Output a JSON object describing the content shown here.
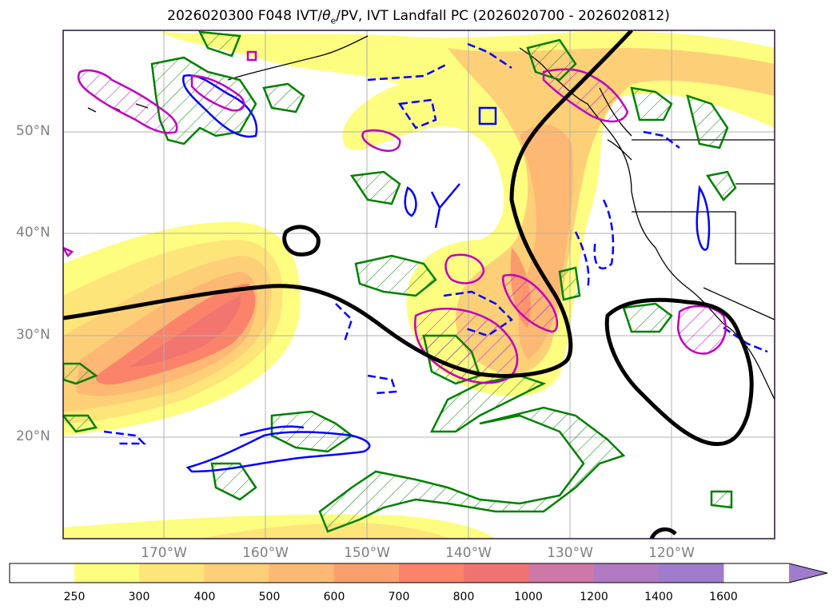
{
  "title_parts": {
    "before": "2026020300 F048 IVT/",
    "theta": "θ",
    "theta_sub": "e",
    "after": "/PV, IVT Landfall PC (2026020700 - 2026020812)"
  },
  "map": {
    "lat_labels": [
      "50°N",
      "40°N",
      "30°N",
      "20°N"
    ],
    "lon_labels": [
      "170°W",
      "160°W",
      "150°W",
      "140°W",
      "130°W",
      "120°W"
    ],
    "grid": true,
    "colors": {
      "ivt_shading": [
        "#fdfd80",
        "#fde57a",
        "#fdd077",
        "#fdb873",
        "#fc9f6e",
        "#fa8369",
        "#f07371",
        "#cf77a5",
        "#b17ac3",
        "#a07cce"
      ],
      "positive_pv_contour": "#008000",
      "negative_contour": "#0000ff",
      "magenta_contour": "#bf00bf",
      "landfall_pc_contour": "#000000"
    }
  },
  "colorbar": {
    "ticks": [
      "250",
      "300",
      "400",
      "500",
      "600",
      "700",
      "800",
      "1000",
      "1200",
      "1400",
      "1600"
    ],
    "extend": "max"
  }
}
